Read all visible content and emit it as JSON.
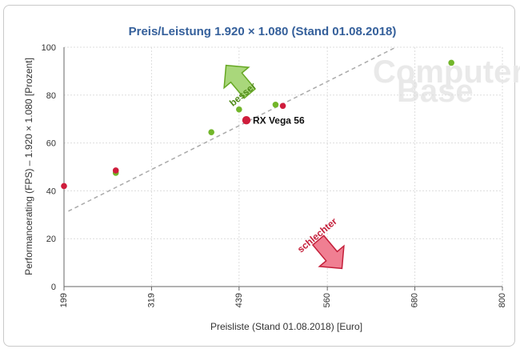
{
  "chart_data": {
    "type": "scatter",
    "title": "Preis/Leistung 1.920 × 1.080 (Stand 01.08.2018)",
    "xlabel": "Preisliste (Stand 01.08.2018) [Euro]",
    "ylabel": "Performancerating (FPS) – 1.920 × 1.080 [Prozent]",
    "xlim": [
      199,
      800
    ],
    "ylim": [
      0,
      100
    ],
    "x_ticks": [
      199,
      319,
      439,
      560,
      680,
      800
    ],
    "y_ticks": [
      0,
      20,
      40,
      60,
      80,
      100
    ],
    "grid": true,
    "colors": {
      "green": "#72b62a",
      "red": "#cf1d3c",
      "trend": "#aaaaaa"
    },
    "series": [
      {
        "color": "green",
        "points": [
          {
            "x": 270,
            "y": 47.5
          },
          {
            "x": 401,
            "y": 64.5
          },
          {
            "x": 439,
            "y": 74
          },
          {
            "x": 489,
            "y": 76
          },
          {
            "x": 730,
            "y": 93.5
          }
        ]
      },
      {
        "color": "red",
        "points": [
          {
            "x": 199,
            "y": 42
          },
          {
            "x": 270,
            "y": 48.5
          },
          {
            "x": 499,
            "y": 75.5
          }
        ]
      }
    ],
    "highlight": {
      "x": 449,
      "y": 69.5,
      "label": "RX Vega 56",
      "color": "red"
    },
    "trendline": {
      "from": {
        "x": 205,
        "y": 31.5
      },
      "to": {
        "x": 654,
        "y": 100
      }
    },
    "annotations": {
      "better": "besser",
      "worse": "schlechter"
    },
    "watermark": {
      "line1": "Computer",
      "line2": "Base"
    }
  }
}
